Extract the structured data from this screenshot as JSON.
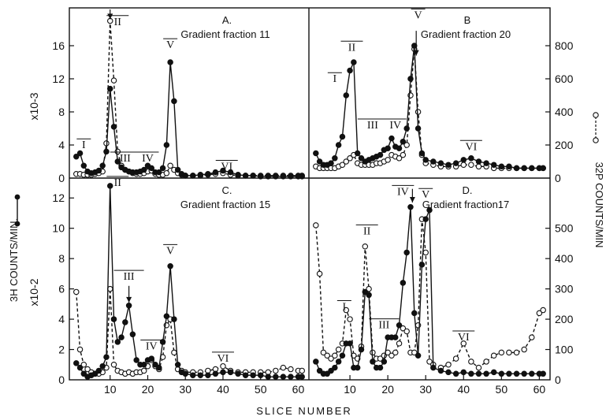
{
  "chart_data": {
    "type": "line",
    "xlabel": "SLICE NUMBER",
    "ylabel_left": "3H COUNTS/MIN.",
    "ylabel_right": "32P COUNTS/MIN",
    "series_legend": {
      "filled": "3H",
      "open": "32P"
    },
    "panels": [
      {
        "id": "A",
        "title": "A.",
        "subtitle": "Gradient fraction 11",
        "scale_label": "x10-3",
        "y_ticks": [
          "4",
          "8",
          "12",
          "16"
        ],
        "y_tick_values": [
          4,
          8,
          12,
          16
        ],
        "ylim": [
          0,
          20
        ],
        "xlim": [
          0,
          62
        ],
        "peaks": [
          {
            "label": "I",
            "x": 3,
            "y": 3.6
          },
          {
            "label": "II",
            "x": 12,
            "y": 18.5
          },
          {
            "label": "III",
            "x": 14,
            "y": 2.0
          },
          {
            "label": "IV",
            "x": 20,
            "y": 2.0
          },
          {
            "label": "V",
            "x": 26,
            "y": 15.7
          },
          {
            "label": "VI",
            "x": 41,
            "y": 1.0
          }
        ],
        "arrows": [
          {
            "x": 10,
            "y_from": 21,
            "y_to": 19.2
          }
        ],
        "filled_series": {
          "name": "3H",
          "x": [
            1,
            2,
            3,
            4,
            5,
            6,
            7,
            8,
            9,
            10,
            11,
            12,
            13,
            14,
            15,
            16,
            17,
            18,
            19,
            20,
            21,
            22,
            23,
            24,
            25,
            26,
            27,
            28,
            29,
            30,
            32,
            34,
            36,
            38,
            40,
            42,
            44,
            46,
            48,
            50,
            52,
            54,
            56,
            58,
            60,
            61
          ],
          "y": [
            2.6,
            3.0,
            1.5,
            0.8,
            0.6,
            0.7,
            0.9,
            1.5,
            3.2,
            10.8,
            6.2,
            2.0,
            1.3,
            1.0,
            0.8,
            0.7,
            0.7,
            0.8,
            1.0,
            1.5,
            1.2,
            0.7,
            0.7,
            1.2,
            4.0,
            14.0,
            9.3,
            1.0,
            0.5,
            0.3,
            0.3,
            0.4,
            0.5,
            0.7,
            0.9,
            0.7,
            0.4,
            0.3,
            0.3,
            0.2,
            0.2,
            0.2,
            0.2,
            0.2,
            0.2,
            0.2
          ]
        },
        "open_series": {
          "name": "32P",
          "x": [
            1,
            2,
            3,
            4,
            5,
            6,
            7,
            8,
            9,
            10,
            11,
            12,
            13,
            14,
            15,
            16,
            17,
            18,
            19,
            20,
            21,
            22,
            23,
            24,
            25,
            26,
            27,
            28,
            29,
            30,
            32,
            34,
            36,
            38,
            40,
            42,
            44,
            46,
            48,
            50,
            52,
            54,
            56,
            58,
            60,
            61
          ],
          "y": [
            0.5,
            0.5,
            0.4,
            0.4,
            0.4,
            0.5,
            0.6,
            0.8,
            4.2,
            19.0,
            11.8,
            3.2,
            1.5,
            1.0,
            0.8,
            0.6,
            0.5,
            0.5,
            0.6,
            0.8,
            0.9,
            0.5,
            0.4,
            0.4,
            0.6,
            1.5,
            1.0,
            0.6,
            0.4,
            0.3,
            0.3,
            0.3,
            0.4,
            0.5,
            0.6,
            0.4,
            0.3,
            0.3,
            0.3,
            0.3,
            0.3,
            0.3,
            0.3,
            0.3,
            0.3,
            0.3
          ]
        }
      },
      {
        "id": "B",
        "title": "B",
        "subtitle": "Gradient fraction 20",
        "y_ticks_right": [
          "200",
          "400",
          "600",
          "800"
        ],
        "y_tick_values_right": [
          200,
          400,
          600,
          800
        ],
        "ylim_right": [
          0,
          1000
        ],
        "xlim": [
          0,
          62
        ],
        "peaks": [
          {
            "label": "I",
            "x": 6,
            "y": 580
          },
          {
            "label": "II",
            "x": 10.5,
            "y": 770
          },
          {
            "label": "III",
            "x": 16,
            "y": 300
          },
          {
            "label": "IV",
            "x": 22,
            "y": 300
          },
          {
            "label": "V",
            "x": 28,
            "y": 965
          },
          {
            "label": "VI",
            "x": 42,
            "y": 170
          }
        ],
        "arrows": [
          {
            "x": 27.5,
            "y_from": 890,
            "y_to": 740
          }
        ],
        "filled_series": {
          "name": "3H",
          "x": [
            1,
            2,
            3,
            4,
            5,
            6,
            7,
            8,
            9,
            10,
            11,
            12,
            13,
            14,
            15,
            16,
            17,
            18,
            19,
            20,
            21,
            22,
            23,
            24,
            25,
            26,
            27,
            28,
            29,
            30,
            32,
            34,
            36,
            38,
            40,
            42,
            44,
            46,
            48,
            50,
            52,
            54,
            56,
            58,
            60,
            61
          ],
          "y": [
            150,
            100,
            80,
            80,
            90,
            120,
            200,
            250,
            500,
            650,
            700,
            150,
            120,
            100,
            110,
            120,
            130,
            140,
            170,
            180,
            240,
            190,
            180,
            220,
            300,
            600,
            800,
            300,
            150,
            110,
            100,
            90,
            80,
            90,
            110,
            120,
            100,
            90,
            80,
            70,
            70,
            60,
            60,
            60,
            60,
            60
          ]
        },
        "open_series": {
          "name": "32P",
          "x": [
            1,
            2,
            3,
            4,
            5,
            6,
            7,
            8,
            9,
            10,
            11,
            12,
            13,
            14,
            15,
            16,
            17,
            18,
            19,
            20,
            21,
            22,
            23,
            24,
            25,
            26,
            27,
            28,
            29,
            30,
            32,
            34,
            36,
            38,
            40,
            42,
            44,
            46,
            48,
            50,
            52,
            54,
            56,
            58,
            60,
            61
          ],
          "y": [
            70,
            60,
            60,
            60,
            60,
            60,
            70,
            80,
            100,
            120,
            140,
            90,
            80,
            80,
            80,
            80,
            90,
            90,
            100,
            110,
            140,
            130,
            120,
            140,
            200,
            500,
            780,
            400,
            140,
            90,
            80,
            70,
            70,
            70,
            80,
            80,
            70,
            70,
            60,
            60,
            60,
            60,
            60,
            60,
            60,
            60
          ]
        }
      },
      {
        "id": "C",
        "title": "C.",
        "subtitle": "Gradient fraction 15",
        "scale_label": "x10-2",
        "y_ticks": [
          "2",
          "4",
          "6",
          "8",
          "10",
          "12"
        ],
        "y_tick_values": [
          2,
          4,
          6,
          8,
          10,
          12
        ],
        "ylim": [
          0,
          13
        ],
        "xlim": [
          0,
          62
        ],
        "x_ticks": [
          "10",
          "20",
          "30",
          "40",
          "50",
          "60"
        ],
        "x_tick_values": [
          10,
          20,
          30,
          40,
          50,
          60
        ],
        "peaks": [
          {
            "label": "II",
            "x": 12,
            "y": 12.8
          },
          {
            "label": "III",
            "x": 15,
            "y": 6.6
          },
          {
            "label": "IV",
            "x": 21,
            "y": 2.0
          },
          {
            "label": "V",
            "x": 26,
            "y": 8.3
          },
          {
            "label": "VI",
            "x": 40,
            "y": 1.2
          }
        ],
        "arrows": [
          {
            "x": 15,
            "y_from": 6.2,
            "y_to": 5.1
          }
        ],
        "filled_series": {
          "name": "3H",
          "x": [
            1,
            2,
            3,
            4,
            5,
            6,
            7,
            8,
            9,
            10,
            11,
            12,
            13,
            14,
            15,
            16,
            17,
            18,
            19,
            20,
            21,
            22,
            23,
            24,
            25,
            26,
            27,
            28,
            29,
            30,
            32,
            34,
            36,
            38,
            40,
            42,
            44,
            46,
            48,
            50,
            52,
            54,
            56,
            58,
            60,
            61
          ],
          "y": [
            1.1,
            0.8,
            0.4,
            0.2,
            0.3,
            0.4,
            0.6,
            0.9,
            1.5,
            12.8,
            4.0,
            2.5,
            2.8,
            3.8,
            4.9,
            3.0,
            1.3,
            1.0,
            1.0,
            1.3,
            1.4,
            1.0,
            0.8,
            2.5,
            4.2,
            7.5,
            4.0,
            1.0,
            0.5,
            0.4,
            0.3,
            0.3,
            0.3,
            0.4,
            0.5,
            0.5,
            0.4,
            0.3,
            0.3,
            0.3,
            0.2,
            0.2,
            0.2,
            0.2,
            0.2,
            0.2
          ]
        },
        "open_series": {
          "name": "32P",
          "x": [
            1,
            2,
            3,
            4,
            5,
            6,
            7,
            8,
            9,
            10,
            11,
            12,
            13,
            14,
            15,
            16,
            17,
            18,
            19,
            20,
            21,
            22,
            23,
            24,
            25,
            26,
            27,
            28,
            29,
            30,
            32,
            34,
            36,
            38,
            40,
            42,
            44,
            46,
            48,
            50,
            52,
            54,
            56,
            58,
            60,
            61
          ],
          "y": [
            5.8,
            2.0,
            1.0,
            0.7,
            0.5,
            0.4,
            0.4,
            0.5,
            0.8,
            6.0,
            1.0,
            0.6,
            0.5,
            0.4,
            0.5,
            0.4,
            0.5,
            0.5,
            0.6,
            0.9,
            1.3,
            0.9,
            0.7,
            1.5,
            3.6,
            4.0,
            1.8,
            0.7,
            0.6,
            0.5,
            0.5,
            0.5,
            0.6,
            0.7,
            0.9,
            0.6,
            0.5,
            0.5,
            0.5,
            0.5,
            0.5,
            0.6,
            0.8,
            0.7,
            0.6,
            0.6
          ]
        }
      },
      {
        "id": "D",
        "title": "D.",
        "subtitle": "Gradient fraction17",
        "y_ticks_right": [
          "100",
          "200",
          "300",
          "400",
          "500"
        ],
        "y_tick_values_right": [
          100,
          200,
          300,
          400,
          500
        ],
        "ylim_right": [
          0,
          650
        ],
        "xlim": [
          0,
          62
        ],
        "x_ticks": [
          "10",
          "20",
          "30",
          "40",
          "50",
          "60"
        ],
        "x_tick_values": [
          10,
          20,
          30,
          40,
          50,
          60
        ],
        "peaks": [
          {
            "label": "I",
            "x": 8.5,
            "y": 230
          },
          {
            "label": "II",
            "x": 14.5,
            "y": 480
          },
          {
            "label": "III",
            "x": 19,
            "y": 170
          },
          {
            "label": "IV",
            "x": 24,
            "y": 610
          },
          {
            "label": "V",
            "x": 30,
            "y": 600
          },
          {
            "label": "VI",
            "x": 40,
            "y": 130
          }
        ],
        "arrows": [
          {
            "x": 26.5,
            "y_from": 630,
            "y_to": 585
          }
        ],
        "filled_series": {
          "name": "3H",
          "x": [
            1,
            2,
            3,
            4,
            5,
            6,
            7,
            8,
            9,
            10,
            11,
            12,
            13,
            14,
            15,
            16,
            17,
            18,
            19,
            20,
            21,
            22,
            23,
            24,
            25,
            26,
            27,
            28,
            29,
            30,
            31,
            32,
            34,
            36,
            38,
            40,
            42,
            44,
            46,
            48,
            50,
            52,
            54,
            56,
            58,
            60,
            61
          ],
          "y": [
            60,
            30,
            20,
            20,
            30,
            40,
            60,
            80,
            120,
            120,
            40,
            40,
            100,
            290,
            280,
            60,
            40,
            40,
            60,
            140,
            140,
            140,
            180,
            320,
            420,
            570,
            220,
            80,
            380,
            530,
            560,
            40,
            30,
            25,
            20,
            25,
            20,
            20,
            20,
            25,
            20,
            20,
            20,
            20,
            20,
            20,
            20
          ]
        },
        "open_series": {
          "name": "32P",
          "x": [
            1,
            2,
            3,
            4,
            5,
            6,
            7,
            8,
            9,
            10,
            11,
            12,
            13,
            14,
            15,
            16,
            17,
            18,
            19,
            20,
            21,
            22,
            23,
            24,
            25,
            26,
            27,
            28,
            29,
            30,
            31,
            32,
            34,
            36,
            38,
            40,
            42,
            44,
            46,
            48,
            50,
            52,
            54,
            56,
            58,
            60,
            61
          ],
          "y": [
            510,
            350,
            90,
            80,
            70,
            80,
            100,
            120,
            230,
            200,
            80,
            70,
            110,
            440,
            300,
            90,
            70,
            70,
            80,
            90,
            80,
            90,
            120,
            170,
            160,
            90,
            90,
            180,
            530,
            420,
            60,
            50,
            40,
            50,
            70,
            120,
            60,
            40,
            60,
            80,
            90,
            90,
            90,
            100,
            140,
            220,
            230
          ]
        }
      }
    ]
  }
}
